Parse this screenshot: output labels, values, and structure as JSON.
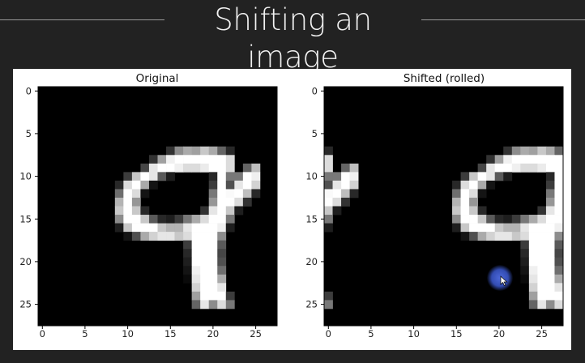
{
  "title": "Shifting an image",
  "panels": [
    {
      "title": "Original"
    },
    {
      "title": "Shifted (rolled)"
    }
  ],
  "x_ticks": [
    "0",
    "5",
    "10",
    "15",
    "20",
    "25"
  ],
  "y_ticks": [
    "0",
    "5",
    "10",
    "15",
    "20",
    "25"
  ],
  "colors": {
    "background": "#222222",
    "title": "#f2f2f2",
    "rule": "#9a9a9a",
    "card": "#ffffff",
    "cursor_highlight": "#4a64d8"
  },
  "image": {
    "size": 28,
    "roll_columns": 6,
    "digit_shown": "9",
    "grayscale": [
      [
        0,
        0,
        0,
        0,
        0,
        0,
        0,
        0,
        0,
        0,
        0,
        0,
        0,
        0,
        0,
        0,
        0,
        0,
        0,
        0,
        0,
        0,
        0,
        0,
        0,
        0,
        0,
        0
      ],
      [
        0,
        0,
        0,
        0,
        0,
        0,
        0,
        0,
        0,
        0,
        0,
        0,
        0,
        0,
        0,
        0,
        0,
        0,
        0,
        0,
        0,
        0,
        0,
        0,
        0,
        0,
        0,
        0
      ],
      [
        0,
        0,
        0,
        0,
        0,
        0,
        0,
        0,
        0,
        0,
        0,
        0,
        0,
        0,
        0,
        0,
        0,
        0,
        0,
        0,
        0,
        0,
        0,
        0,
        0,
        0,
        0,
        0
      ],
      [
        0,
        0,
        0,
        0,
        0,
        0,
        0,
        0,
        0,
        0,
        0,
        0,
        0,
        0,
        0,
        0,
        0,
        0,
        0,
        0,
        0,
        0,
        0,
        0,
        0,
        0,
        0,
        0
      ],
      [
        0,
        0,
        0,
        0,
        0,
        0,
        0,
        0,
        0,
        0,
        0,
        0,
        0,
        0,
        0,
        0,
        0,
        0,
        0,
        0,
        0,
        0,
        0,
        0,
        0,
        0,
        0,
        0
      ],
      [
        0,
        0,
        0,
        0,
        0,
        0,
        0,
        0,
        0,
        0,
        0,
        0,
        0,
        0,
        0,
        0,
        0,
        0,
        0,
        0,
        0,
        0,
        0,
        0,
        0,
        0,
        0,
        0
      ],
      [
        0,
        0,
        0,
        0,
        0,
        0,
        0,
        0,
        0,
        0,
        0,
        0,
        0,
        0,
        0,
        0,
        0,
        0,
        0,
        0,
        0,
        0,
        0,
        0,
        0,
        0,
        0,
        0
      ],
      [
        0,
        0,
        0,
        0,
        0,
        0,
        0,
        0,
        0,
        0,
        0,
        0,
        0,
        0,
        0,
        50,
        140,
        170,
        160,
        200,
        170,
        100,
        40,
        0,
        0,
        0,
        0,
        0
      ],
      [
        0,
        0,
        0,
        0,
        0,
        0,
        0,
        0,
        0,
        0,
        0,
        0,
        0,
        50,
        160,
        240,
        255,
        255,
        255,
        255,
        255,
        255,
        220,
        0,
        0,
        0,
        0,
        0
      ],
      [
        0,
        0,
        0,
        0,
        0,
        0,
        0,
        0,
        0,
        0,
        0,
        0,
        70,
        230,
        255,
        255,
        240,
        220,
        220,
        235,
        255,
        255,
        220,
        0,
        100,
        190,
        0,
        0
      ],
      [
        0,
        0,
        0,
        0,
        0,
        0,
        0,
        0,
        0,
        0,
        60,
        200,
        255,
        230,
        90,
        30,
        0,
        0,
        0,
        0,
        40,
        255,
        120,
        120,
        255,
        240,
        0,
        0
      ],
      [
        0,
        0,
        0,
        0,
        0,
        0,
        0,
        0,
        0,
        40,
        220,
        255,
        170,
        20,
        0,
        0,
        0,
        0,
        0,
        0,
        60,
        255,
        80,
        230,
        255,
        210,
        0,
        0
      ],
      [
        0,
        0,
        0,
        0,
        0,
        0,
        0,
        0,
        0,
        110,
        255,
        220,
        20,
        0,
        0,
        0,
        0,
        0,
        0,
        0,
        120,
        255,
        250,
        255,
        190,
        40,
        0,
        0
      ],
      [
        0,
        0,
        0,
        0,
        0,
        0,
        0,
        0,
        0,
        180,
        255,
        150,
        0,
        0,
        0,
        0,
        0,
        0,
        0,
        0,
        150,
        255,
        255,
        220,
        50,
        0,
        0,
        0
      ],
      [
        0,
        0,
        0,
        0,
        0,
        0,
        0,
        0,
        0,
        200,
        255,
        200,
        40,
        0,
        0,
        0,
        0,
        0,
        0,
        50,
        230,
        255,
        200,
        30,
        0,
        0,
        0,
        0
      ],
      [
        0,
        0,
        0,
        0,
        0,
        0,
        0,
        0,
        0,
        140,
        255,
        255,
        200,
        90,
        40,
        30,
        60,
        120,
        170,
        220,
        255,
        255,
        120,
        0,
        0,
        0,
        0,
        0
      ],
      [
        0,
        0,
        0,
        0,
        0,
        0,
        0,
        0,
        0,
        30,
        200,
        255,
        255,
        255,
        200,
        180,
        180,
        230,
        255,
        255,
        255,
        240,
        30,
        0,
        0,
        0,
        0,
        0
      ],
      [
        0,
        0,
        0,
        0,
        0,
        0,
        0,
        0,
        0,
        0,
        20,
        80,
        170,
        210,
        230,
        230,
        200,
        220,
        255,
        255,
        255,
        140,
        0,
        0,
        0,
        0,
        0,
        0
      ],
      [
        0,
        0,
        0,
        0,
        0,
        0,
        0,
        0,
        0,
        0,
        0,
        0,
        0,
        0,
        0,
        0,
        0,
        60,
        255,
        255,
        255,
        90,
        0,
        0,
        0,
        0,
        0,
        0
      ],
      [
        0,
        0,
        0,
        0,
        0,
        0,
        0,
        0,
        0,
        0,
        0,
        0,
        0,
        0,
        0,
        0,
        0,
        40,
        255,
        255,
        255,
        70,
        0,
        0,
        0,
        0,
        0,
        0
      ],
      [
        0,
        0,
        0,
        0,
        0,
        0,
        0,
        0,
        0,
        0,
        0,
        0,
        0,
        0,
        0,
        0,
        0,
        30,
        255,
        255,
        255,
        80,
        0,
        0,
        0,
        0,
        0,
        0
      ],
      [
        0,
        0,
        0,
        0,
        0,
        0,
        0,
        0,
        0,
        0,
        0,
        0,
        0,
        0,
        0,
        0,
        0,
        20,
        240,
        255,
        255,
        110,
        0,
        0,
        0,
        0,
        0,
        0
      ],
      [
        0,
        0,
        0,
        0,
        0,
        0,
        0,
        0,
        0,
        0,
        0,
        0,
        0,
        0,
        0,
        0,
        0,
        10,
        230,
        255,
        255,
        170,
        0,
        0,
        0,
        0,
        0,
        0
      ],
      [
        0,
        0,
        0,
        0,
        0,
        0,
        0,
        0,
        0,
        0,
        0,
        0,
        0,
        0,
        0,
        0,
        0,
        0,
        210,
        255,
        255,
        230,
        0,
        0,
        0,
        0,
        0,
        0
      ],
      [
        0,
        0,
        0,
        0,
        0,
        0,
        0,
        0,
        0,
        0,
        0,
        0,
        0,
        0,
        0,
        0,
        0,
        0,
        160,
        255,
        255,
        255,
        60,
        0,
        0,
        0,
        0,
        0
      ],
      [
        0,
        0,
        0,
        0,
        0,
        0,
        0,
        0,
        0,
        0,
        0,
        0,
        0,
        0,
        0,
        0,
        0,
        0,
        100,
        230,
        140,
        220,
        120,
        0,
        0,
        0,
        0,
        0
      ],
      [
        0,
        0,
        0,
        0,
        0,
        0,
        0,
        0,
        0,
        0,
        0,
        0,
        0,
        0,
        0,
        0,
        0,
        0,
        0,
        0,
        0,
        0,
        0,
        0,
        0,
        0,
        0,
        0
      ],
      [
        0,
        0,
        0,
        0,
        0,
        0,
        0,
        0,
        0,
        0,
        0,
        0,
        0,
        0,
        0,
        0,
        0,
        0,
        0,
        0,
        0,
        0,
        0,
        0,
        0,
        0,
        0,
        0
      ]
    ]
  }
}
